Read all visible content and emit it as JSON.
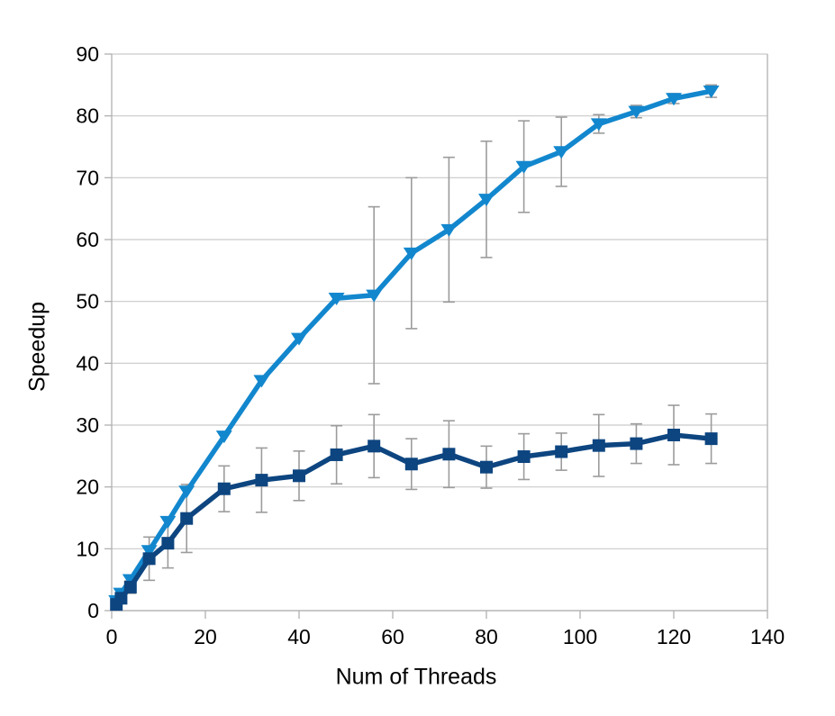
{
  "chart_data": {
    "type": "line",
    "title": "",
    "xlabel": "Num of Threads",
    "ylabel": "Speedup",
    "xlim": [
      0,
      140
    ],
    "ylim": [
      0,
      90
    ],
    "x_ticks": [
      0,
      20,
      40,
      60,
      80,
      100,
      120,
      140
    ],
    "y_ticks": [
      0,
      10,
      20,
      30,
      40,
      50,
      60,
      70,
      80,
      90
    ],
    "grid": "horizontal",
    "legend": "none",
    "background_color": "#ffffff",
    "grid_color": "#c9c9c9",
    "axis_color": "#b0b0b0",
    "text_color": "#000000",
    "error_bar_color": "#9c9c9c",
    "x": [
      1,
      2,
      4,
      8,
      12,
      16,
      24,
      32,
      40,
      48,
      56,
      64,
      72,
      80,
      88,
      96,
      104,
      112,
      120,
      128
    ],
    "series": [
      {
        "name": "light-blue-triangles",
        "marker": "triangle-down",
        "color": "#1287ce",
        "values": [
          1.6,
          2.8,
          5.0,
          9.7,
          14.4,
          19.3,
          28.2,
          37.2,
          44.0,
          50.5,
          51.0,
          57.8,
          61.6,
          66.5,
          71.8,
          74.2,
          78.7,
          80.7,
          82.8,
          84.0
        ],
        "error": [
          0,
          0,
          0,
          0,
          0,
          0,
          0,
          0,
          0,
          0,
          14.3,
          12.2,
          11.7,
          9.4,
          7.4,
          5.6,
          1.5,
          1.0,
          0.8,
          1.0
        ]
      },
      {
        "name": "dark-blue-squares",
        "marker": "square",
        "color": "#0d4580",
        "values": [
          1.0,
          2.0,
          3.8,
          8.4,
          10.9,
          14.9,
          19.7,
          21.1,
          21.8,
          25.2,
          26.6,
          23.7,
          25.3,
          23.2,
          24.9,
          25.7,
          26.7,
          27.0,
          28.4,
          27.8
        ],
        "error": [
          0,
          0,
          1.0,
          3.5,
          4.0,
          5.5,
          3.7,
          5.2,
          4.0,
          4.7,
          5.1,
          4.1,
          5.4,
          3.4,
          3.7,
          3.0,
          5.0,
          3.2,
          4.8,
          4.0
        ]
      }
    ]
  }
}
